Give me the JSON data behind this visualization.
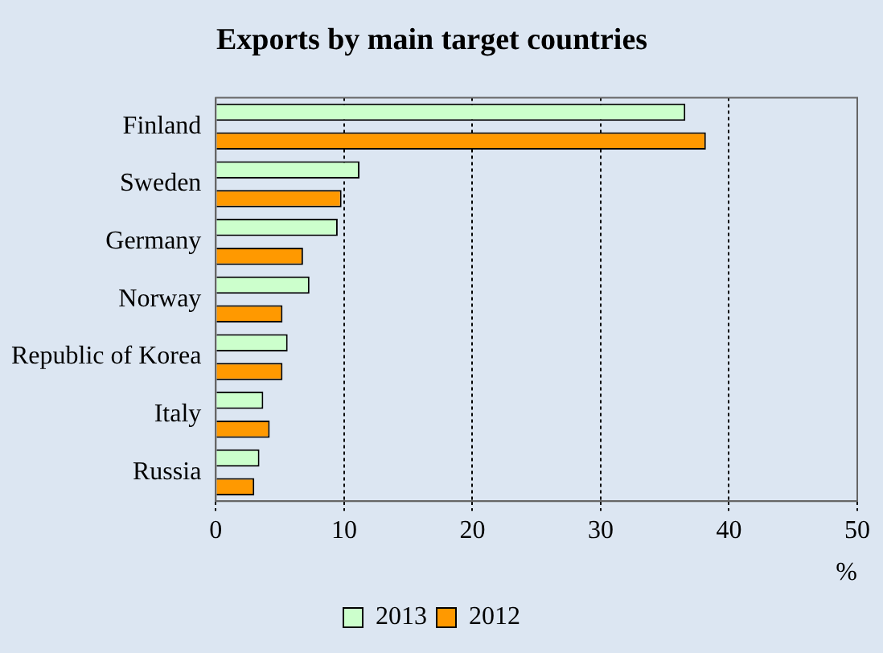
{
  "chart_data": {
    "type": "bar",
    "orientation": "horizontal",
    "title": "Exports by main target countries",
    "xlabel": "%",
    "categories": [
      "Finland",
      "Sweden",
      "Germany",
      "Norway",
      "Republic of Korea",
      "Italy",
      "Russia"
    ],
    "series": [
      {
        "name": "2013",
        "color": "#ccffcc",
        "values": [
          36.6,
          11.2,
          9.5,
          7.3,
          5.6,
          3.7,
          3.4
        ]
      },
      {
        "name": "2012",
        "color": "#ff9900",
        "values": [
          38.2,
          9.8,
          6.8,
          5.2,
          5.2,
          4.2,
          3.0
        ]
      }
    ],
    "xlim": [
      0,
      50
    ],
    "xticks": [
      0,
      10,
      20,
      30,
      40,
      50
    ],
    "grid": "x",
    "legend": "bottom"
  }
}
